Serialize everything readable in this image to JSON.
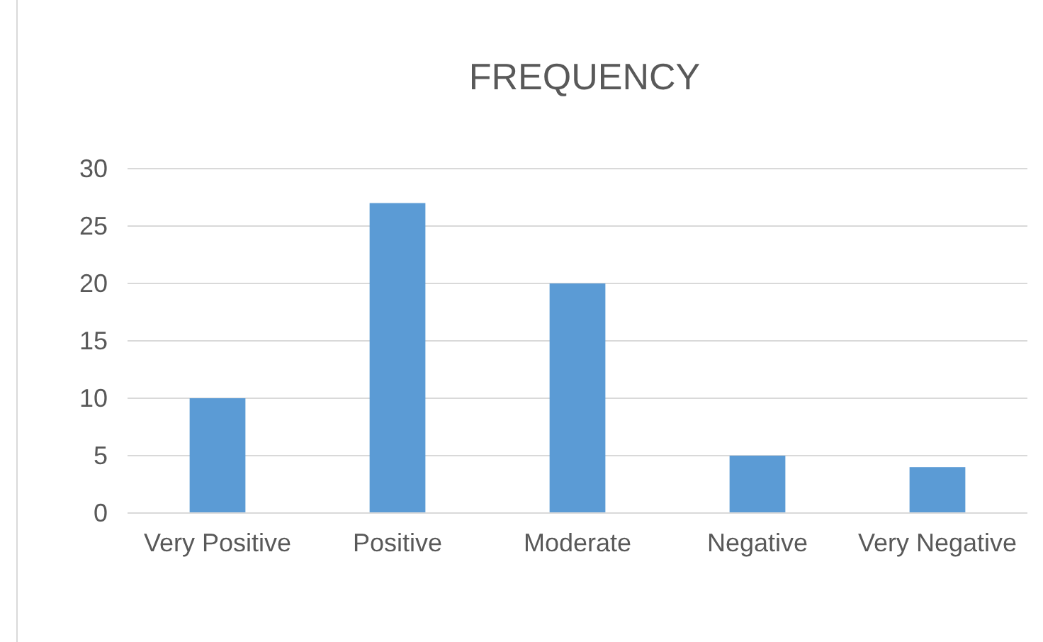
{
  "chart_data": {
    "type": "bar",
    "title": "FREQUENCY",
    "categories": [
      "Very Positive",
      "Positive",
      "Moderate",
      "Negative",
      "Very Negative"
    ],
    "values": [
      10,
      27,
      20,
      5,
      4
    ],
    "color": "#5b9bd5",
    "ylim": [
      0,
      30
    ],
    "yticks": [
      0,
      5,
      10,
      15,
      20,
      25,
      30
    ],
    "grid": "y"
  }
}
